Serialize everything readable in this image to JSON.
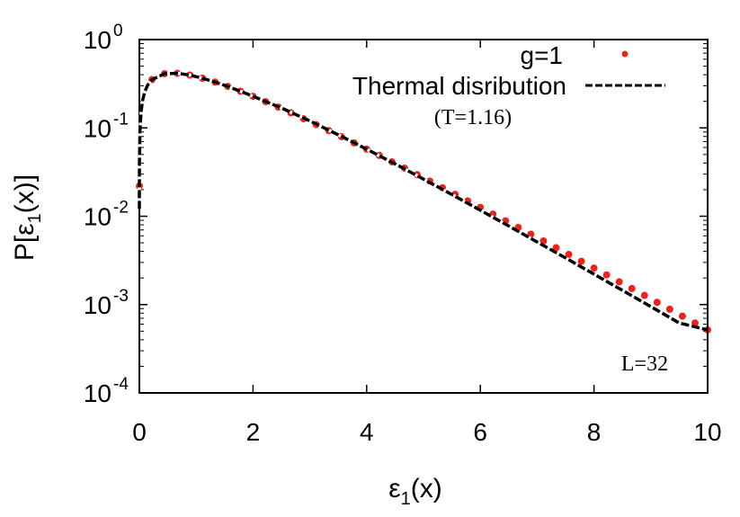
{
  "chart_data": {
    "type": "scatter",
    "title": "",
    "xlabel": "ε1(x)",
    "ylabel": "P[ε1(x)]",
    "xlim": [
      0,
      10
    ],
    "ylim": [
      0.0001,
      1
    ],
    "yscale": "log",
    "grid": false,
    "legend_placement": "top-right",
    "x_ticks": [
      "0",
      "2",
      "4",
      "6",
      "8",
      "10"
    ],
    "y_ticks": [
      {
        "base": "10",
        "exp": "0"
      },
      {
        "base": "10",
        "exp": "-1"
      },
      {
        "base": "10",
        "exp": "-2"
      },
      {
        "base": "10",
        "exp": "-3"
      },
      {
        "base": "10",
        "exp": "-4"
      }
    ],
    "annotations": {
      "temperature": "(T=1.16)",
      "size": "L=32"
    },
    "series": [
      {
        "name": "g=1",
        "style": "points",
        "color": "#e8241c",
        "x": [
          0.0,
          0.222,
          0.444,
          0.667,
          0.889,
          1.111,
          1.333,
          1.556,
          1.778,
          2.0,
          2.222,
          2.444,
          2.667,
          2.889,
          3.111,
          3.333,
          3.556,
          3.778,
          4.0,
          4.222,
          4.444,
          4.667,
          4.889,
          5.111,
          5.333,
          5.556,
          5.778,
          6.0,
          6.222,
          6.444,
          6.667,
          6.889,
          7.111,
          7.333,
          7.556,
          7.778,
          8.0,
          8.222,
          8.444,
          8.667,
          8.889,
          9.111,
          9.333,
          9.556,
          9.778,
          10.0
        ],
        "y": [
          0.022,
          0.352,
          0.411,
          0.415,
          0.396,
          0.365,
          0.33,
          0.295,
          0.26,
          0.228,
          0.198,
          0.172,
          0.148,
          0.127,
          0.109,
          0.0932,
          0.0795,
          0.0677,
          0.0575,
          0.0488,
          0.0413,
          0.035,
          0.0296,
          0.025,
          0.021,
          0.0177,
          0.0149,
          0.0126,
          0.01057,
          0.00888,
          0.00746,
          0.00626,
          0.00525,
          0.0044,
          0.00369,
          0.00309,
          0.00259,
          0.00217,
          0.00181,
          0.00152,
          0.00127,
          0.00106,
          0.000886,
          0.00074,
          0.000618,
          0.000517
        ]
      },
      {
        "name": "Thermal disribution",
        "style": "dashed-line",
        "color": "#000000",
        "x": [
          0.00018,
          0.0005,
          0.002,
          0.01,
          0.03,
          0.06,
          0.1,
          0.15,
          0.222,
          0.444,
          0.667,
          0.889,
          1.111,
          1.333,
          1.556,
          1.778,
          2.0,
          2.5,
          3.0,
          3.5,
          4.0,
          4.5,
          5.0,
          5.5,
          6.0,
          6.5,
          7.0,
          7.5,
          8.0,
          8.5,
          9.0,
          9.5,
          10.0
        ],
        "y": [
          0.0121,
          0.0202,
          0.0403,
          0.0895,
          0.1525,
          0.2101,
          0.262,
          0.3074,
          0.352,
          0.411,
          0.415,
          0.396,
          0.365,
          0.33,
          0.295,
          0.26,
          0.228,
          0.168,
          0.12,
          0.0836,
          0.0575,
          0.0391,
          0.0263,
          0.0176,
          0.0117,
          0.00775,
          0.00512,
          0.00337,
          0.00221,
          0.00145,
          0.000948,
          0.000619,
          0.000517
        ]
      }
    ]
  }
}
